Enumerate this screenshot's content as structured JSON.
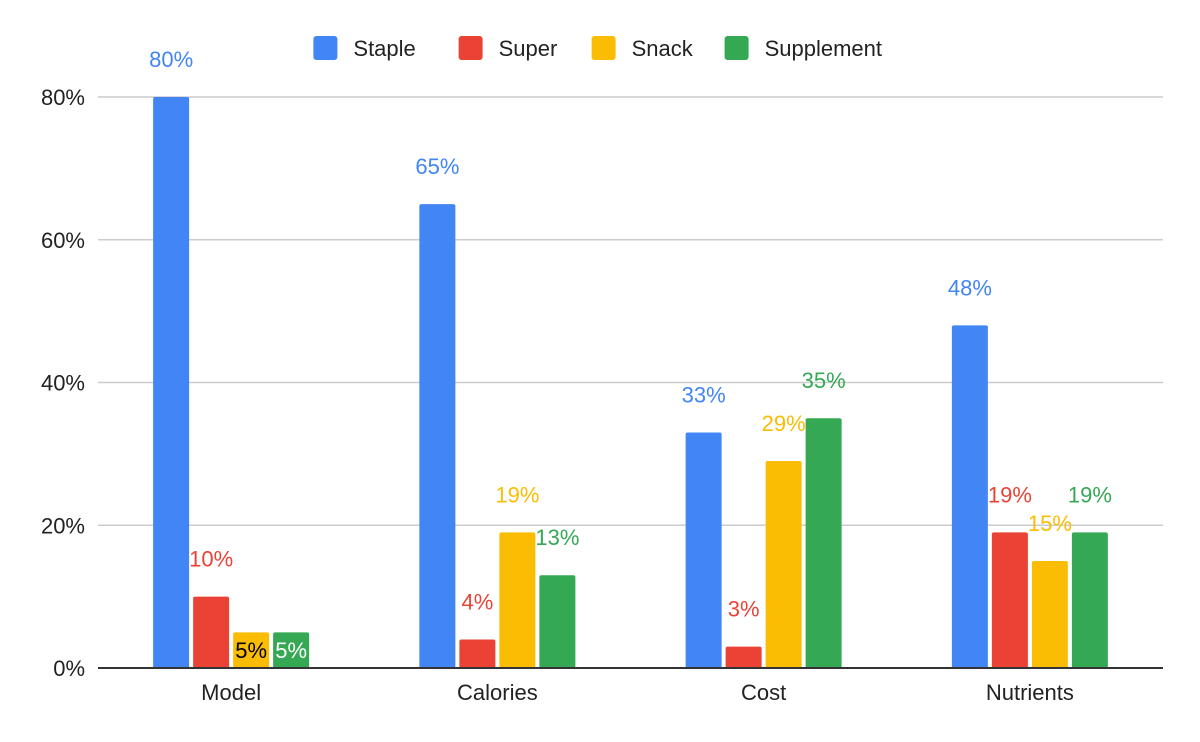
{
  "chart_data": {
    "type": "bar",
    "categories": [
      "Model",
      "Calories",
      "Cost",
      "Nutrients"
    ],
    "series": [
      {
        "name": "Staple",
        "color": "#4285f4",
        "values": [
          80,
          65,
          33,
          48
        ],
        "labels": [
          "80%",
          "65%",
          "33%",
          "48%"
        ]
      },
      {
        "name": "Super",
        "color": "#ea4335",
        "values": [
          10,
          4,
          3,
          19
        ],
        "labels": [
          "10%",
          "4%",
          "3%",
          "19%"
        ]
      },
      {
        "name": "Snack",
        "color": "#fbbc04",
        "values": [
          5,
          19,
          29,
          15
        ],
        "labels": [
          "5%",
          "19%",
          "29%",
          "15%"
        ]
      },
      {
        "name": "Supplement",
        "color": "#34a853",
        "values": [
          5,
          13,
          35,
          19
        ],
        "labels": [
          "5%",
          "13%",
          "35%",
          "19%"
        ]
      }
    ],
    "y_ticks": [
      {
        "value": 0,
        "label": "0%"
      },
      {
        "value": 20,
        "label": "20%"
      },
      {
        "value": 40,
        "label": "40%"
      },
      {
        "value": 60,
        "label": "60%"
      },
      {
        "value": 80,
        "label": "80%"
      }
    ],
    "ylim": [
      0,
      80
    ],
    "grid": true,
    "legend_position": "top-center",
    "inside_label_color": "#000000",
    "inside_label_color_alt": "#ffffff"
  }
}
